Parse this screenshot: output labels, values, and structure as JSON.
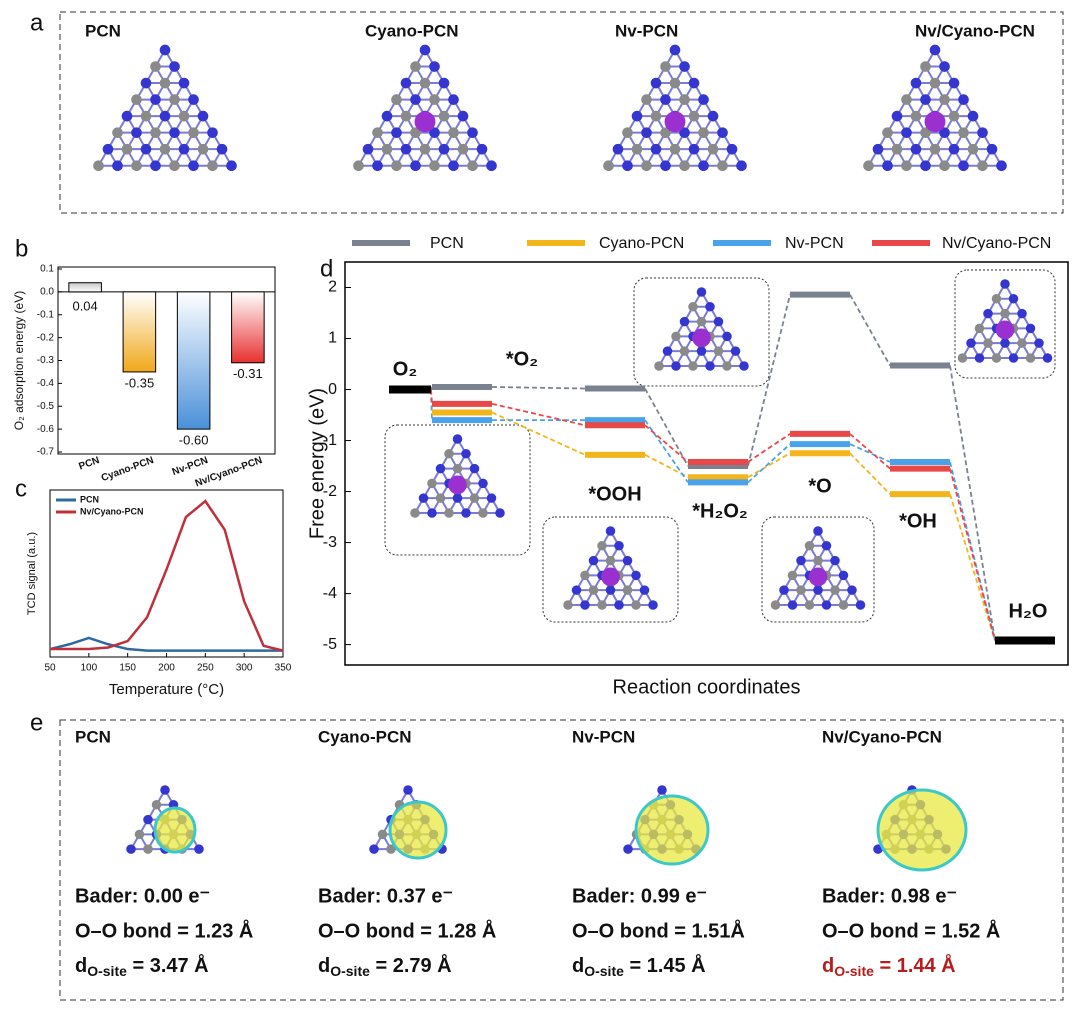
{
  "panel_labels": [
    "a",
    "b",
    "c",
    "d",
    "e"
  ],
  "panel_a": {
    "titles": [
      "PCN",
      "Cyano-PCN",
      "Nv-PCN",
      "Nv/Cyano-PCN"
    ]
  },
  "chart_data": [
    {
      "type": "bar",
      "ylabel": "O₂ adsorption energy (eV)",
      "categories": [
        "PCN",
        "Cyano-PCN",
        "Nv-PCN",
        "Nv/Cyano-PCN"
      ],
      "values": [
        0.04,
        -0.35,
        -0.6,
        -0.31
      ],
      "value_labels": [
        "0.04",
        "-0.35",
        "-0.60",
        "-0.31"
      ],
      "colors": [
        "#c8c8c8",
        "#f0a818",
        "#4a90d9",
        "#e83030"
      ],
      "ylim": [
        -0.7,
        0.1
      ],
      "yticks": [
        -0.7,
        -0.6,
        -0.5,
        -0.4,
        -0.3,
        -0.2,
        -0.1,
        {
          "value": 0,
          "label": "0.0"
        },
        0.1
      ]
    },
    {
      "type": "line",
      "xlabel": "Temperature (°C)",
      "ylabel": "TCD signal (a.u.)",
      "x": [
        50,
        75,
        100,
        125,
        150,
        175,
        200,
        225,
        250,
        275,
        300,
        325,
        350
      ],
      "series": [
        {
          "name": "PCN",
          "color": "#2e6a9e",
          "values": [
            0.05,
            0.08,
            0.12,
            0.08,
            0.05,
            0.04,
            0.04,
            0.04,
            0.04,
            0.04,
            0.04,
            0.04,
            0.04
          ]
        },
        {
          "name": "Nv/Cyano-PCN",
          "color": "#c0303a",
          "values": [
            0.05,
            0.05,
            0.05,
            0.06,
            0.1,
            0.25,
            0.55,
            0.88,
            0.98,
            0.8,
            0.35,
            0.07,
            0.04
          ]
        }
      ],
      "xlim": [
        50,
        350
      ],
      "xticks": [
        50,
        100,
        150,
        200,
        250,
        300,
        350
      ],
      "ylim": [
        0,
        1.05
      ]
    },
    {
      "type": "energy",
      "xlabel": "Reaction coordinates",
      "ylabel": "Free energy (eV)",
      "categories": [
        "O₂",
        "*O₂",
        "*OOH",
        "*H₂O₂",
        "*O",
        "*OH",
        "H₂O"
      ],
      "endpoint_color": "#000000",
      "series": [
        {
          "name": "PCN",
          "color": "#7a8290",
          "values": [
            0,
            0.05,
            0.02,
            -1.5,
            1.86,
            0.47,
            -4.92
          ]
        },
        {
          "name": "Cyano-PCN",
          "color": "#f2b51c",
          "values": [
            0,
            -0.45,
            -1.28,
            -1.72,
            -1.25,
            -2.05,
            -4.92
          ]
        },
        {
          "name": "Nv-PCN",
          "color": "#4aa3e8",
          "values": [
            0,
            -0.6,
            -0.6,
            -1.82,
            -1.07,
            -1.42,
            -4.92
          ]
        },
        {
          "name": "Nv/Cyano-PCN",
          "color": "#e84848",
          "values": [
            0,
            -0.28,
            -0.7,
            -1.42,
            -0.87,
            -1.55,
            -4.92
          ]
        }
      ],
      "ylim": [
        -5.4,
        2.5
      ],
      "yticks": [
        -5,
        -4,
        -3,
        -2,
        -1,
        0,
        1,
        2
      ]
    }
  ],
  "panel_e": {
    "columns": [
      {
        "title": "PCN",
        "bader": "Bader: 0.00 e⁻",
        "bond": "O–O bond = 1.23 Å",
        "d": "d",
        "d_sub": "O-site",
        "d_rest": " = 3.47 Å",
        "color": "#111111"
      },
      {
        "title": "Cyano-PCN",
        "bader": "Bader: 0.37 e⁻",
        "bond": "O–O bond = 1.28 Å",
        "d": "d",
        "d_sub": "O-site",
        "d_rest": " = 2.79 Å",
        "color": "#111111"
      },
      {
        "title": "Nv-PCN",
        "bader": "Bader: 0.99 e⁻",
        "bond": "O–O bond = 1.51Å",
        "d": "d",
        "d_sub": "O-site",
        "d_rest": " = 1.45 Å",
        "color": "#111111"
      },
      {
        "title": "Nv/Cyano-PCN",
        "bader": "Bader: 0.98 e⁻",
        "bond": "O–O bond = 1.52 Å",
        "d": "d",
        "d_sub": "O-site",
        "d_rest": " = 1.44 Å",
        "color": "#b81c1c"
      }
    ]
  }
}
